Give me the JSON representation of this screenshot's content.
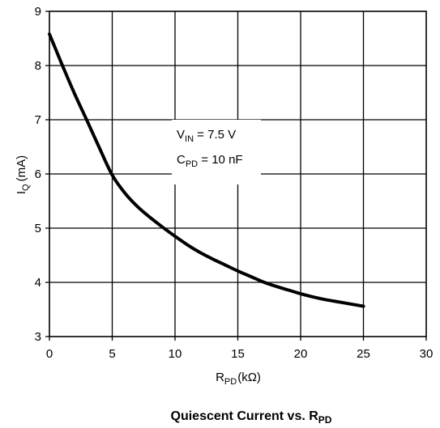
{
  "chart_data": {
    "type": "line",
    "title": {
      "main": "Quiescent Current vs. R",
      "sub": "PD"
    },
    "xlabel": {
      "main": "R",
      "sub": "PD",
      "unit": "(kΩ)"
    },
    "ylabel": {
      "main": "I",
      "sub": "Q",
      "unit": "(mA)"
    },
    "xlim": [
      0,
      30
    ],
    "ylim": [
      3,
      9
    ],
    "xticks": [
      0,
      5,
      10,
      15,
      20,
      25,
      30
    ],
    "yticks": [
      3,
      4,
      5,
      6,
      7,
      8,
      9
    ],
    "xtick_labels": [
      "0",
      "5",
      "10",
      "15",
      "20",
      "25",
      "30"
    ],
    "ytick_labels": [
      "3",
      "4",
      "5",
      "6",
      "7",
      "8",
      "9"
    ],
    "grid": true,
    "annotation": {
      "line1": {
        "main": "V",
        "sub": "IN",
        "rest": " =  7.5 V"
      },
      "line2": {
        "main": "C",
        "sub": "PD",
        "rest": " = 10 nF"
      }
    },
    "series": [
      {
        "x": [
          0,
          0.5,
          1,
          2,
          3,
          4,
          5,
          6,
          7,
          8,
          9,
          10,
          11,
          12,
          13,
          14,
          15,
          16,
          17,
          18,
          19,
          20,
          21,
          22,
          23,
          24,
          25
        ],
        "y": [
          8.58,
          8.3,
          8.02,
          7.48,
          6.98,
          6.47,
          5.98,
          5.65,
          5.4,
          5.2,
          5.02,
          4.85,
          4.69,
          4.55,
          4.43,
          4.32,
          4.21,
          4.11,
          4.01,
          3.93,
          3.86,
          3.79,
          3.73,
          3.68,
          3.64,
          3.6,
          3.56
        ]
      }
    ],
    "colors": {
      "line": "#000000",
      "grid": "#000000",
      "background": "#ffffff"
    }
  }
}
